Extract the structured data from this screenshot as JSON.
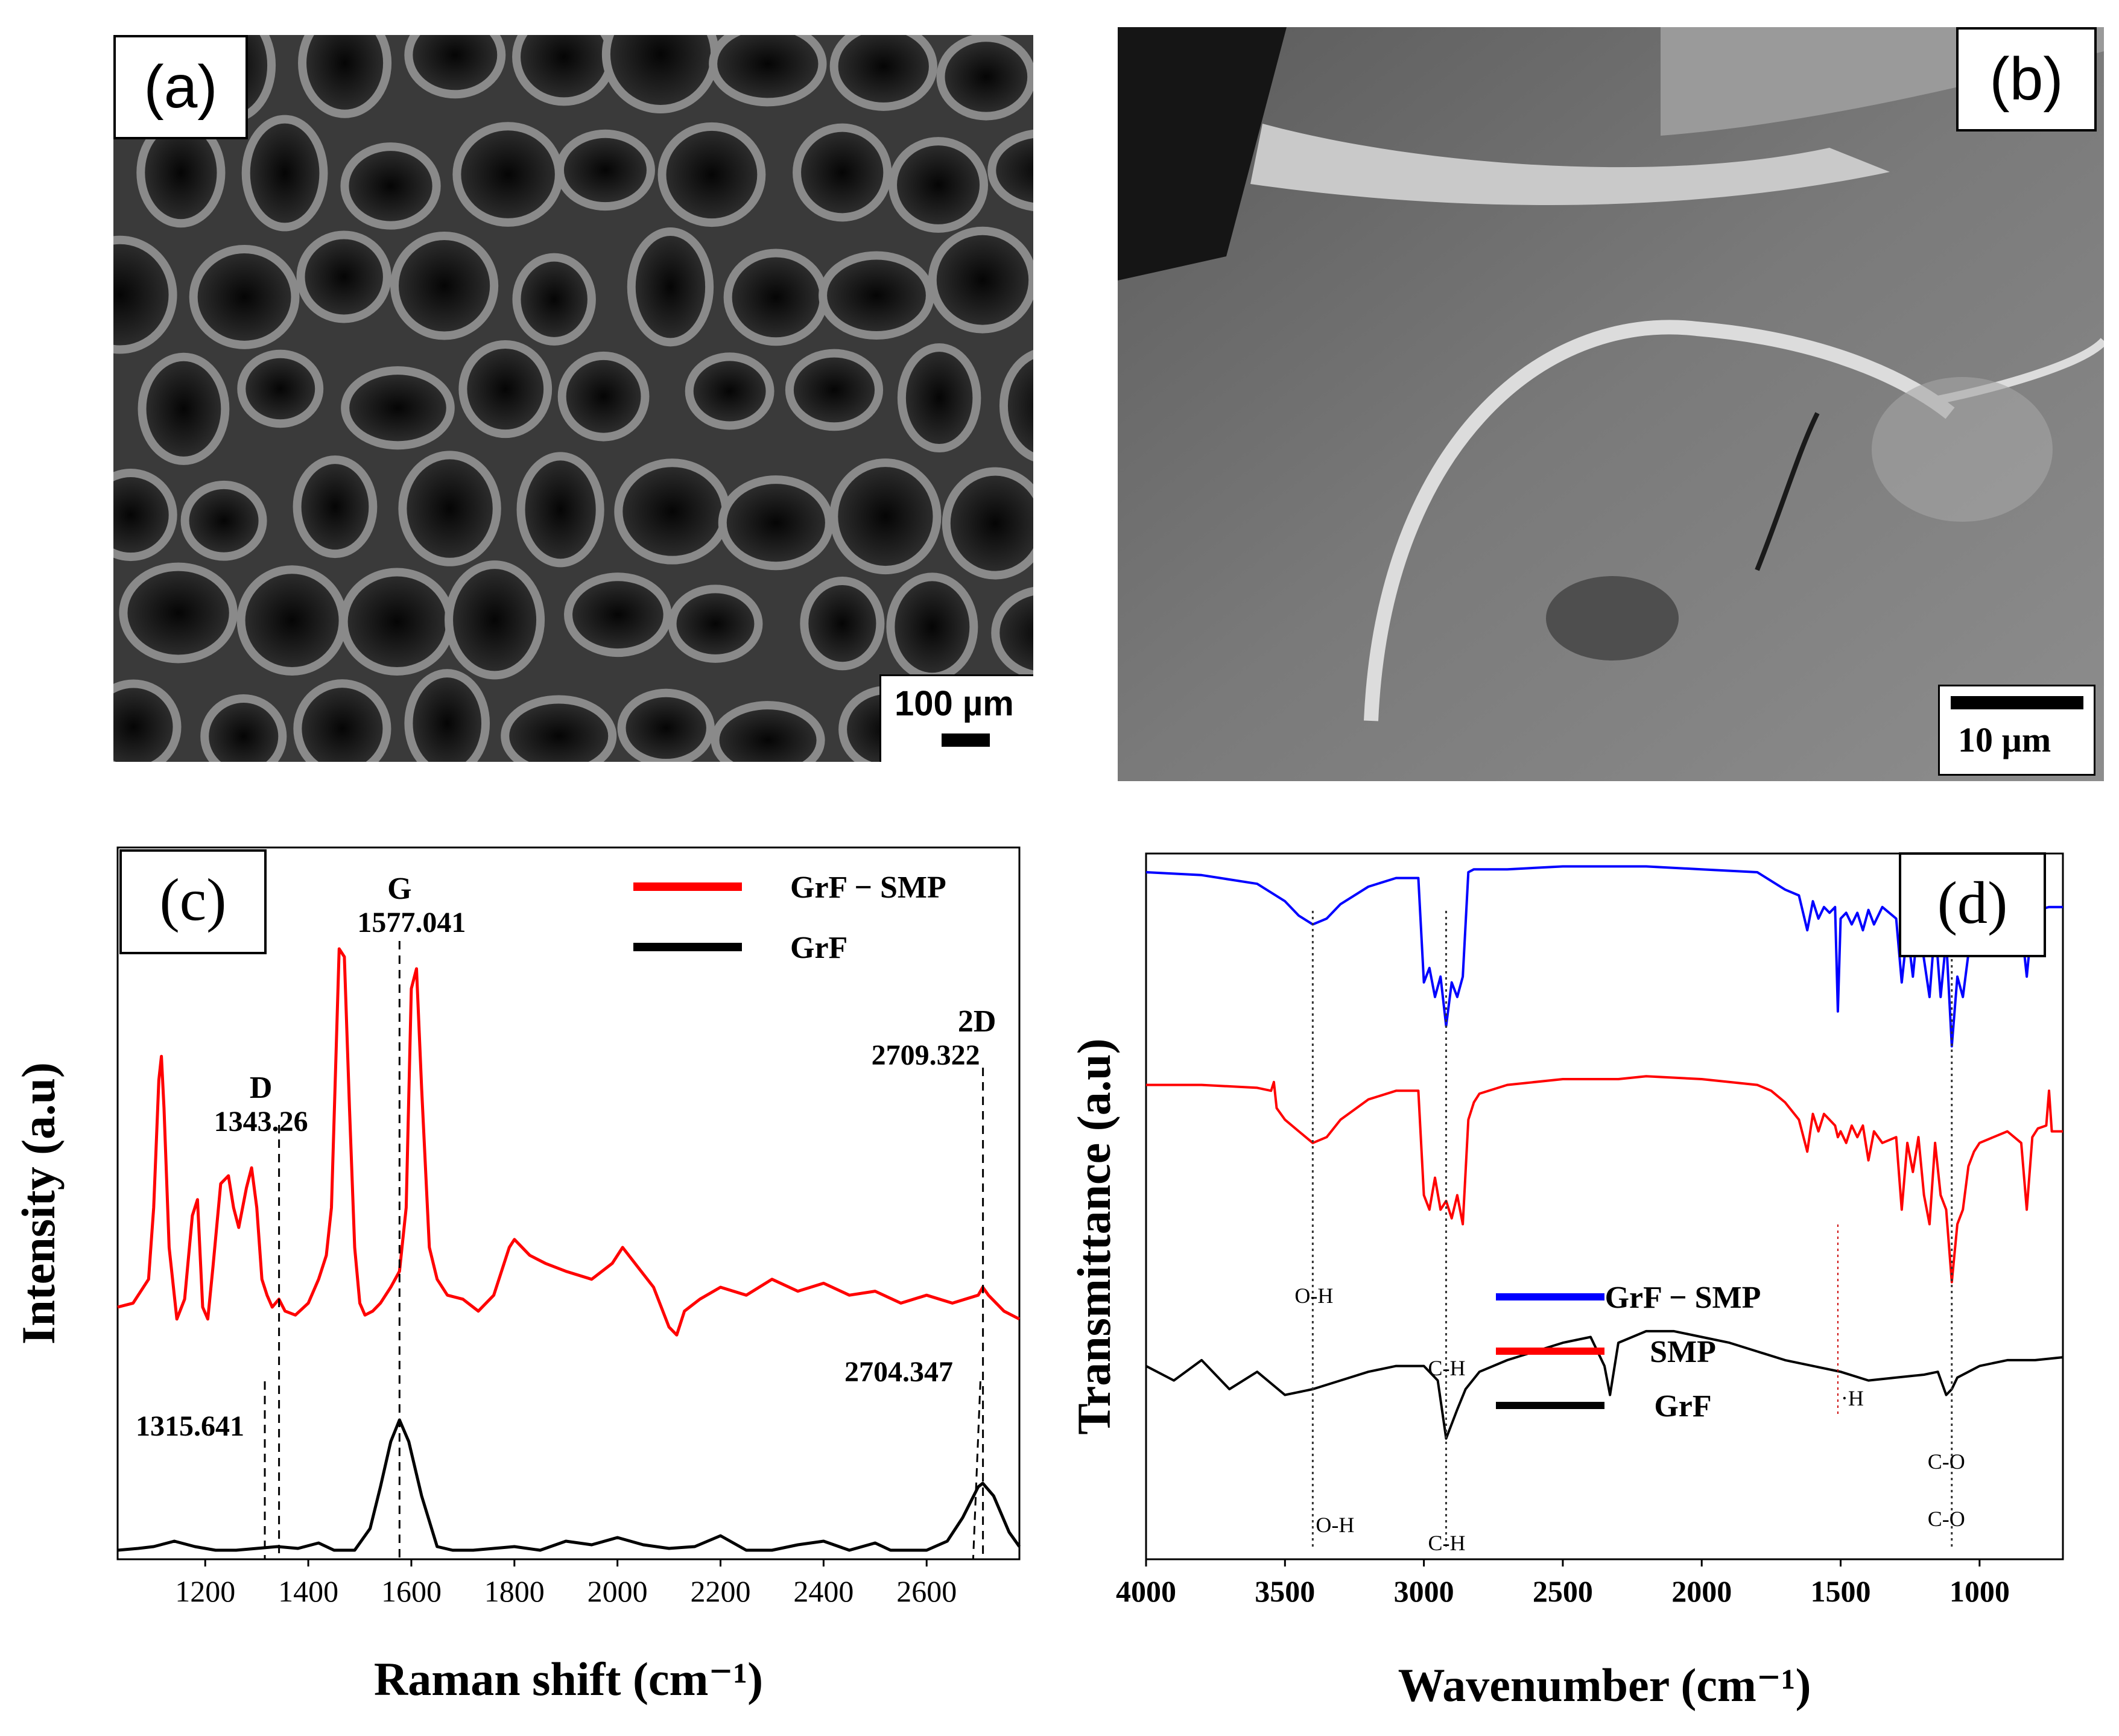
{
  "panels": {
    "a": {
      "label": "(a)",
      "scale_bar": "100 µm"
    },
    "b": {
      "label": "(b)",
      "scale_bar": "10 µm"
    },
    "c": {
      "label": "(c)"
    },
    "d": {
      "label": "(d)"
    }
  },
  "chart_data": [
    {
      "type": "line",
      "panel": "(c)",
      "xlabel": "Raman shift (cm⁻¹)",
      "ylabel": "Intensity (a.u)",
      "xlim": [
        1030,
        2780
      ],
      "xticks": [
        1200,
        1400,
        1600,
        1800,
        2000,
        2200,
        2400,
        2600
      ],
      "legend_position": "top-right",
      "series": [
        {
          "name": "GrF − SMP",
          "color": "#ff0000",
          "baseline": 0.58,
          "x": [
            1030,
            1060,
            1090,
            1100,
            1110,
            1115,
            1120,
            1130,
            1145,
            1160,
            1175,
            1185,
            1195,
            1205,
            1215,
            1230,
            1245,
            1255,
            1265,
            1280,
            1290,
            1300,
            1310,
            1320,
            1330,
            1343,
            1355,
            1375,
            1400,
            1420,
            1435,
            1445,
            1460,
            1470,
            1480,
            1490,
            1500,
            1510,
            1525,
            1540,
            1560,
            1577,
            1590,
            1600,
            1610,
            1620,
            1635,
            1650,
            1670,
            1700,
            1730,
            1760,
            1790,
            1800,
            1830,
            1860,
            1900,
            1950,
            1990,
            2010,
            2040,
            2070,
            2100,
            2115,
            2130,
            2160,
            2200,
            2250,
            2300,
            2350,
            2400,
            2450,
            2500,
            2550,
            2600,
            2650,
            2700,
            2709,
            2720,
            2750,
            2780
          ],
          "y": [
            0.05,
            0.06,
            0.12,
            0.3,
            0.62,
            0.68,
            0.55,
            0.2,
            0.02,
            0.07,
            0.28,
            0.32,
            0.05,
            0.02,
            0.15,
            0.36,
            0.38,
            0.3,
            0.25,
            0.35,
            0.4,
            0.3,
            0.12,
            0.08,
            0.05,
            0.07,
            0.04,
            0.03,
            0.06,
            0.12,
            0.18,
            0.3,
            0.95,
            0.93,
            0.55,
            0.2,
            0.06,
            0.03,
            0.04,
            0.06,
            0.1,
            0.14,
            0.3,
            0.85,
            0.9,
            0.6,
            0.2,
            0.12,
            0.08,
            0.07,
            0.04,
            0.08,
            0.2,
            0.22,
            0.18,
            0.16,
            0.14,
            0.12,
            0.16,
            0.2,
            0.15,
            0.1,
            0.0,
            -0.02,
            0.04,
            0.07,
            0.1,
            0.08,
            0.12,
            0.09,
            0.11,
            0.08,
            0.09,
            0.06,
            0.08,
            0.06,
            0.08,
            0.1,
            0.08,
            0.04,
            0.02
          ]
        },
        {
          "name": "GrF",
          "color": "#000000",
          "baseline": 0.0,
          "x": [
            1030,
            1070,
            1100,
            1140,
            1180,
            1220,
            1260,
            1300,
            1340,
            1380,
            1420,
            1450,
            1490,
            1520,
            1540,
            1560,
            1577,
            1595,
            1620,
            1650,
            1680,
            1720,
            1760,
            1800,
            1850,
            1900,
            1950,
            2000,
            2050,
            2100,
            2150,
            2200,
            2250,
            2300,
            2350,
            2400,
            2450,
            2500,
            2530,
            2560,
            2600,
            2640,
            2670,
            2700,
            2709,
            2730,
            2760,
            2780
          ],
          "y": [
            0.0,
            0.01,
            0.02,
            0.05,
            0.02,
            0.0,
            0.0,
            0.01,
            0.02,
            0.01,
            0.04,
            0.0,
            0.0,
            0.12,
            0.35,
            0.6,
            0.72,
            0.6,
            0.3,
            0.02,
            0.0,
            0.0,
            0.01,
            0.02,
            0.0,
            0.05,
            0.03,
            0.07,
            0.03,
            0.01,
            0.02,
            0.08,
            0.0,
            0.0,
            0.03,
            0.05,
            0.0,
            0.04,
            0.0,
            0.0,
            0.0,
            0.05,
            0.18,
            0.35,
            0.37,
            0.3,
            0.1,
            0.02
          ]
        }
      ],
      "annotations": [
        {
          "text": "D",
          "x": 1343.26
        },
        {
          "text": "1343.26",
          "x": 1343.26
        },
        {
          "text": "G",
          "x": 1577.041
        },
        {
          "text": "1577.041",
          "x": 1577.041
        },
        {
          "text": "2D",
          "x": 2709.322
        },
        {
          "text": "2709.322",
          "x": 2709.322
        },
        {
          "text": "1315.641",
          "x": 1315.641
        },
        {
          "text": "2704.347",
          "x": 2704.347
        }
      ]
    },
    {
      "type": "line",
      "panel": "(d)",
      "xlabel": "Wavenumber (cm⁻¹)",
      "ylabel": "Transmittance (a.u)",
      "xlim": [
        4000,
        700
      ],
      "xticks": [
        4000,
        3500,
        3000,
        2500,
        2000,
        1500,
        1000
      ],
      "series": [
        {
          "name": "GrF − SMP",
          "color": "#0000ff",
          "x": [
            4000,
            3800,
            3600,
            3500,
            3450,
            3400,
            3350,
            3300,
            3200,
            3100,
            3020,
            3000,
            2980,
            2960,
            2940,
            2920,
            2900,
            2880,
            2860,
            2840,
            2820,
            2800,
            2700,
            2500,
            2300,
            2200,
            2000,
            1800,
            1750,
            1700,
            1650,
            1620,
            1600,
            1580,
            1560,
            1540,
            1520,
            1510,
            1500,
            1480,
            1460,
            1440,
            1420,
            1400,
            1380,
            1350,
            1300,
            1280,
            1260,
            1240,
            1220,
            1200,
            1180,
            1160,
            1140,
            1120,
            1100,
            1080,
            1060,
            1040,
            1020,
            1000,
            950,
            900,
            850,
            830,
            810,
            790,
            750,
            700
          ],
          "y": [
            0.98,
            0.97,
            0.94,
            0.88,
            0.83,
            0.8,
            0.82,
            0.87,
            0.93,
            0.96,
            0.96,
            0.6,
            0.65,
            0.55,
            0.62,
            0.45,
            0.6,
            0.55,
            0.62,
            0.98,
            0.99,
            0.99,
            0.99,
            1.0,
            1.0,
            1.0,
            0.99,
            0.98,
            0.95,
            0.92,
            0.9,
            0.78,
            0.88,
            0.82,
            0.86,
            0.84,
            0.86,
            0.5,
            0.82,
            0.84,
            0.8,
            0.84,
            0.78,
            0.85,
            0.8,
            0.86,
            0.82,
            0.6,
            0.78,
            0.62,
            0.82,
            0.68,
            0.55,
            0.8,
            0.55,
            0.75,
            0.38,
            0.62,
            0.55,
            0.7,
            0.75,
            0.8,
            0.82,
            0.84,
            0.8,
            0.62,
            0.82,
            0.85,
            0.86,
            0.86
          ],
          "offset": 0.55
        },
        {
          "name": "SMP",
          "color": "#ff0000",
          "x": [
            4000,
            3800,
            3600,
            3550,
            3540,
            3530,
            3500,
            3450,
            3400,
            3350,
            3300,
            3200,
            3100,
            3020,
            3000,
            2980,
            2960,
            2940,
            2920,
            2900,
            2880,
            2860,
            2840,
            2820,
            2800,
            2700,
            2500,
            2300,
            2200,
            2000,
            1800,
            1750,
            1700,
            1650,
            1620,
            1600,
            1580,
            1560,
            1540,
            1520,
            1510,
            1500,
            1480,
            1460,
            1440,
            1420,
            1400,
            1380,
            1350,
            1300,
            1280,
            1260,
            1240,
            1220,
            1200,
            1180,
            1160,
            1140,
            1120,
            1100,
            1080,
            1060,
            1040,
            1020,
            1000,
            950,
            900,
            850,
            830,
            810,
            790,
            760,
            750,
            740,
            700
          ],
          "y": [
            0.98,
            0.98,
            0.97,
            0.96,
            0.99,
            0.9,
            0.86,
            0.82,
            0.78,
            0.8,
            0.86,
            0.93,
            0.96,
            0.96,
            0.6,
            0.55,
            0.66,
            0.55,
            0.58,
            0.52,
            0.6,
            0.5,
            0.86,
            0.92,
            0.95,
            0.98,
            1.0,
            1.0,
            1.01,
            1.0,
            0.98,
            0.96,
            0.92,
            0.86,
            0.75,
            0.88,
            0.82,
            0.88,
            0.86,
            0.84,
            0.8,
            0.82,
            0.78,
            0.84,
            0.8,
            0.84,
            0.72,
            0.82,
            0.78,
            0.8,
            0.55,
            0.78,
            0.68,
            0.8,
            0.6,
            0.5,
            0.78,
            0.6,
            0.55,
            0.3,
            0.5,
            0.55,
            0.7,
            0.75,
            0.78,
            0.8,
            0.82,
            0.78,
            0.55,
            0.8,
            0.83,
            0.84,
            0.96,
            0.82,
            0.82
          ],
          "offset": 0.22
        },
        {
          "name": "GrF",
          "color": "#000000",
          "x": [
            4000,
            3900,
            3800,
            3700,
            3600,
            3500,
            3400,
            3300,
            3200,
            3100,
            3000,
            2950,
            2920,
            2880,
            2850,
            2800,
            2700,
            2600,
            2500,
            2400,
            2350,
            2330,
            2300,
            2200,
            2100,
            2000,
            1900,
            1800,
            1700,
            1600,
            1500,
            1400,
            1300,
            1200,
            1150,
            1120,
            1100,
            1080,
            1000,
            900,
            800,
            700
          ],
          "y": [
            0.5,
            0.45,
            0.52,
            0.42,
            0.48,
            0.4,
            0.42,
            0.45,
            0.48,
            0.5,
            0.5,
            0.45,
            0.25,
            0.35,
            0.42,
            0.48,
            0.52,
            0.55,
            0.58,
            0.6,
            0.5,
            0.4,
            0.58,
            0.62,
            0.62,
            0.6,
            0.58,
            0.55,
            0.52,
            0.5,
            0.48,
            0.45,
            0.46,
            0.47,
            0.48,
            0.4,
            0.42,
            0.46,
            0.5,
            0.52,
            0.52,
            0.53
          ],
          "offset": 0.0
        }
      ],
      "legend": [
        "GrF − SMP",
        "SMP",
        "GrF"
      ],
      "annotations": [
        {
          "text": "O-H",
          "x": 3400,
          "series": "SMP"
        },
        {
          "text": "C-H",
          "x": 2920,
          "series": "SMP"
        },
        {
          "text": "·H",
          "x": 1510,
          "series": "SMP"
        },
        {
          "text": "C-O",
          "x": 1100,
          "series": "SMP"
        },
        {
          "text": "O-H",
          "x": 3400,
          "series": "GrF"
        },
        {
          "text": "C-H",
          "x": 2920,
          "series": "GrF"
        },
        {
          "text": "C-O",
          "x": 1100,
          "series": "GrF"
        }
      ]
    }
  ]
}
